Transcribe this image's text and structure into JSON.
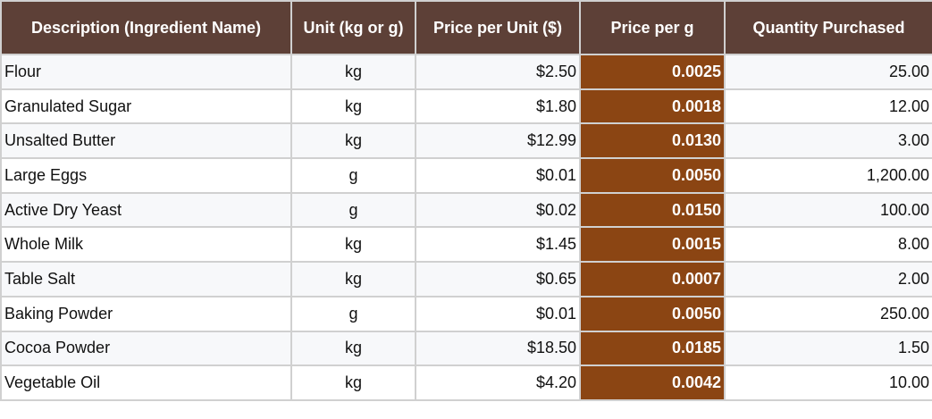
{
  "table": {
    "headers": [
      "Description (Ingredient Name)",
      "Unit (kg or g)",
      "Price per Unit ($)",
      "Price per g",
      "Quantity Purchased"
    ],
    "rows": [
      [
        "Flour",
        "kg",
        "$2.50",
        "0.0025",
        "25.00"
      ],
      [
        "Granulated Sugar",
        "kg",
        "$1.80",
        "0.0018",
        "12.00"
      ],
      [
        "Unsalted Butter",
        "kg",
        "$12.99",
        "0.0130",
        "3.00"
      ],
      [
        "Large Eggs",
        "g",
        "$0.01",
        "0.0050",
        "1,200.00"
      ],
      [
        "Active Dry Yeast",
        "g",
        "$0.02",
        "0.0150",
        "100.00"
      ],
      [
        "Whole Milk",
        "kg",
        "$1.45",
        "0.0015",
        "8.00"
      ],
      [
        "Table Salt",
        "kg",
        "$0.65",
        "0.0007",
        "2.00"
      ],
      [
        "Baking Powder",
        "g",
        "$0.01",
        "0.0050",
        "250.00"
      ],
      [
        "Cocoa Powder",
        "kg",
        "$18.50",
        "0.0185",
        "1.50"
      ],
      [
        "Vegetable Oil",
        "kg",
        "$4.20",
        "0.0042",
        "10.00"
      ]
    ]
  },
  "colors": {
    "header": "#5d4037",
    "highlight_column": "#8b4513",
    "row_alt": "#f7f8fa"
  }
}
